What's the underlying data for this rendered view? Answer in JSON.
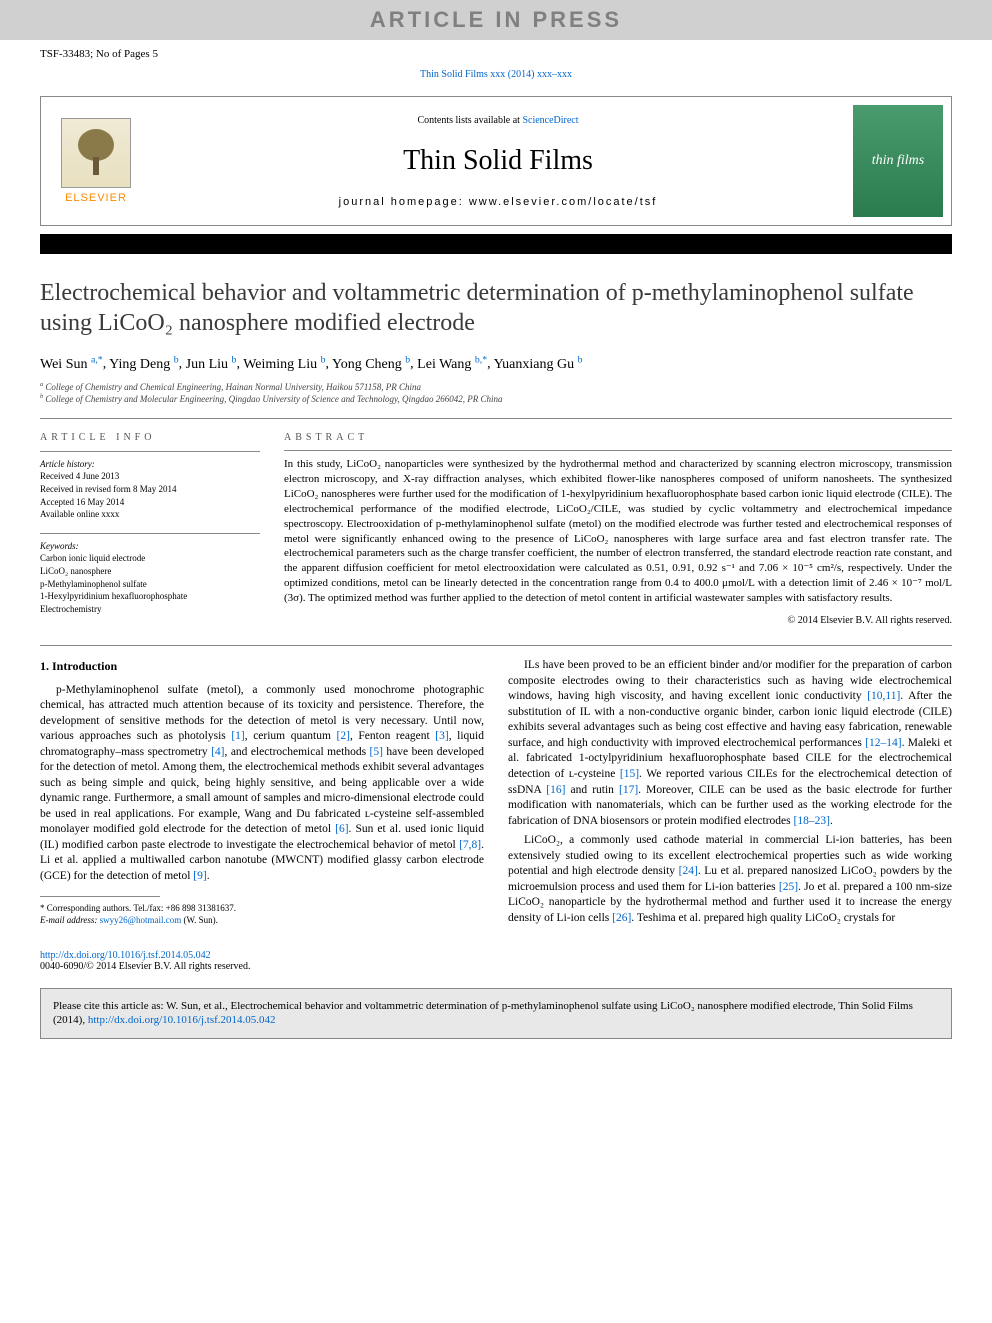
{
  "banner": "ARTICLE IN PRESS",
  "docId": "TSF-33483; No of Pages 5",
  "journalRef": "Thin Solid Films xxx (2014) xxx–xxx",
  "header": {
    "publisherName": "ELSEVIER",
    "contentsPrefix": "Contents lists available at ",
    "contentsLink": "ScienceDirect",
    "journalName": "Thin Solid Films",
    "homepagePrefix": "journal homepage: ",
    "homepage": "www.elsevier.com/locate/tsf",
    "coverText": "thin films"
  },
  "title": "Electrochemical behavior and voltammetric determination of p-methylaminophenol sulfate using LiCoO₂ nanosphere modified electrode",
  "authors": [
    {
      "name": "Wei Sun",
      "aff": "a",
      "mark": ",*"
    },
    {
      "name": "Ying Deng",
      "aff": "b",
      "mark": ""
    },
    {
      "name": "Jun Liu",
      "aff": "b",
      "mark": ""
    },
    {
      "name": "Weiming Liu",
      "aff": "b",
      "mark": ""
    },
    {
      "name": "Yong Cheng",
      "aff": "b",
      "mark": ""
    },
    {
      "name": "Lei Wang",
      "aff": "b",
      "mark": ",*"
    },
    {
      "name": "Yuanxiang Gu",
      "aff": "b",
      "mark": ""
    }
  ],
  "affiliations": [
    {
      "label": "a",
      "text": "College of Chemistry and Chemical Engineering, Hainan Normal University, Haikou 571158, PR China"
    },
    {
      "label": "b",
      "text": "College of Chemistry and Molecular Engineering, Qingdao University of Science and Technology, Qingdao 266042, PR China"
    }
  ],
  "articleInfo": {
    "label": "ARTICLE INFO",
    "historyLabel": "Article history:",
    "history": [
      "Received 4 June 2013",
      "Received in revised form 8 May 2014",
      "Accepted 16 May 2014",
      "Available online xxxx"
    ],
    "keywordsLabel": "Keywords:",
    "keywords": [
      "Carbon ionic liquid electrode",
      "LiCoO₂ nanosphere",
      "p-Methylaminophenol sulfate",
      "1-Hexylpyridinium hexafluorophosphate",
      "Electrochemistry"
    ]
  },
  "abstract": {
    "label": "ABSTRACT",
    "text": "In this study, LiCoO₂ nanoparticles were synthesized by the hydrothermal method and characterized by scanning electron microscopy, transmission electron microscopy, and X-ray diffraction analyses, which exhibited flower-like nanospheres composed of uniform nanosheets. The synthesized LiCoO₂ nanospheres were further used for the modification of 1-hexylpyridinium hexafluorophosphate based carbon ionic liquid electrode (CILE). The electrochemical performance of the modified electrode, LiCoO₂/CILE, was studied by cyclic voltammetry and electrochemical impedance spectroscopy. Electrooxidation of p-methylaminophenol sulfate (metol) on the modified electrode was further tested and electrochemical responses of metol were significantly enhanced owing to the presence of LiCoO₂ nanospheres with large surface area and fast electron transfer rate. The electrochemical parameters such as the charge transfer coefficient, the number of electron transferred, the standard electrode reaction rate constant, and the apparent diffusion coefficient for metol electrooxidation were calculated as 0.51, 0.91, 0.92 s⁻¹ and 7.06 × 10⁻⁵ cm²/s, respectively. Under the optimized conditions, metol can be linearly detected in the concentration range from 0.4 to 400.0 μmol/L with a detection limit of 2.46 × 10⁻⁷ mol/L (3σ). The optimized method was further applied to the detection of metol content in artificial wastewater samples with satisfactory results.",
    "copyright": "© 2014 Elsevier B.V. All rights reserved."
  },
  "intro": {
    "heading": "1. Introduction",
    "p1a": "p-Methylaminophenol sulfate (metol), a commonly used monochrome photographic chemical, has attracted much attention because of its toxicity and persistence. Therefore, the development of sensitive methods for the detection of metol is very necessary. Until now, various approaches such as photolysis ",
    "r1": "[1]",
    "p1b": ", cerium quantum ",
    "r2": "[2]",
    "p1c": ", Fenton reagent ",
    "r3": "[3]",
    "p1d": ", liquid chromatography–mass spectrometry ",
    "r4": "[4]",
    "p1e": ", and electrochemical methods ",
    "r5": "[5]",
    "p1f": " have been developed for the detection of metol. Among them, the electrochemical methods exhibit several advantages such as being simple and quick, being highly sensitive, and being applicable over a wide dynamic range. Furthermore, a small amount of samples and micro-dimensional electrode could be used in real applications. For example, Wang and Du fabricated ʟ-cysteine self-assembled monolayer modified gold electrode for the detection of metol ",
    "r6": "[6]",
    "p1g": ". Sun et al. used ionic liquid (IL) modified carbon paste electrode to investigate the electrochemical behavior of metol ",
    "r7": "[7,8]",
    "p1h": ". Li et al. applied a multiwalled carbon nanotube (MWCNT) modified glassy carbon electrode (GCE) for the detection of metol ",
    "r9": "[9]",
    "p1i": ".",
    "p2a": "ILs have been proved to be an efficient binder and/or modifier for the preparation of carbon composite electrodes owing to their characteristics such as having wide electrochemical windows, having high viscosity, and having excellent ionic conductivity ",
    "r10": "[10,11]",
    "p2b": ". After the substitution of IL with a non-conductive organic binder, carbon ionic liquid electrode (CILE) exhibits several advantages such as being cost effective and having easy fabrication, renewable surface, and high conductivity with improved electrochemical performances ",
    "r12": "[12–14]",
    "p2c": ". Maleki et al. fabricated 1-octylpyridinium hexafluorophosphate based CILE for the electrochemical detection of ʟ-cysteine ",
    "r15": "[15]",
    "p2d": ". We reported various CILEs for the electrochemical detection of ssDNA ",
    "r16": "[16]",
    "p2e": " and rutin ",
    "r17": "[17]",
    "p2f": ". Moreover, CILE can be used as the basic electrode for further modification with nanomaterials, which can be further used as the working electrode for the fabrication of DNA biosensors or protein modified electrodes ",
    "r18": "[18–23]",
    "p2g": ".",
    "p3a": "LiCoO₂, a commonly used cathode material in commercial Li-ion batteries, has been extensively studied owing to its excellent electrochemical properties such as wide working potential and high electrode density ",
    "r24": "[24]",
    "p3b": ". Lu et al. prepared nanosized LiCoO₂ powders by the microemulsion process and used them for Li-ion batteries ",
    "r25": "[25]",
    "p3c": ". Jo et al. prepared a 100 nm-size LiCoO₂ nanoparticle by the hydrothermal method and further used it to increase the energy density of Li-ion cells ",
    "r26": "[26]",
    "p3d": ". Teshima et al. prepared high quality LiCoO₂ crystals for"
  },
  "footnote": {
    "corr": "* Corresponding authors. Tel./fax: +86 898 31381637.",
    "emailLabel": "E-mail address: ",
    "email": "swyy26@hotmail.com",
    "emailSuffix": " (W. Sun)."
  },
  "doi": {
    "link": "http://dx.doi.org/10.1016/j.tsf.2014.05.042",
    "issn": "0040-6090/© 2014 Elsevier B.V. All rights reserved."
  },
  "citationBox": {
    "prefix": "Please cite this article as: W. Sun, et al., Electrochemical behavior and voltammetric determination of p-methylaminophenol sulfate using LiCoO₂ nanosphere modified electrode, Thin Solid Films (2014), ",
    "link": "http://dx.doi.org/10.1016/j.tsf.2014.05.042"
  },
  "colors": {
    "bannerBg": "#d0d0d0",
    "bannerText": "#808080",
    "link": "#0066cc",
    "elsevierOrange": "#ff8800",
    "coverGreen1": "#4a9b6e",
    "coverGreen2": "#2a7b4e",
    "citationBg": "#e8e8e8",
    "border": "#888888"
  }
}
